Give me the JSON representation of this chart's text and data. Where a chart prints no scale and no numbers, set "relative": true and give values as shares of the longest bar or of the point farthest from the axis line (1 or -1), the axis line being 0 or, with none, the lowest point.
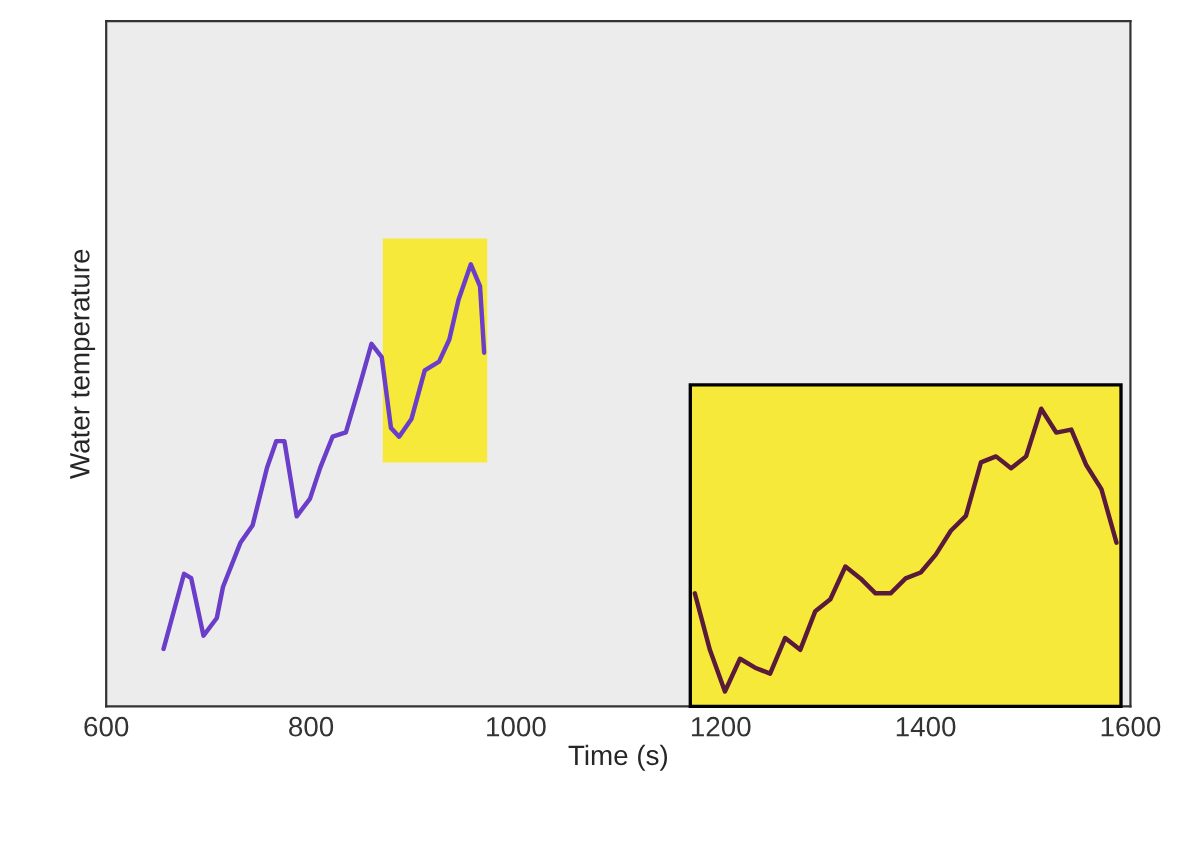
{
  "chart_data": [
    {
      "type": "line",
      "relative": true,
      "xlabel": "Time (s)",
      "ylabel": "Water temperature",
      "xlim": [
        600,
        1600
      ],
      "xticks": [
        600,
        800,
        1000,
        1200,
        1400,
        1600
      ],
      "tick_labels": "x",
      "grid": false,
      "x": [
        656,
        676,
        683,
        695,
        708,
        714,
        731,
        743,
        757,
        766,
        774,
        786,
        799,
        809,
        821,
        834,
        848,
        859,
        869,
        878,
        886,
        898,
        911,
        925,
        935,
        944,
        956,
        965,
        969
      ],
      "series": [
        {
          "color": "#6a3ec8",
          "values": [
            0.13,
            0.3,
            0.29,
            0.16,
            0.2,
            0.27,
            0.37,
            0.41,
            0.54,
            0.6,
            0.6,
            0.43,
            0.47,
            0.54,
            0.61,
            0.62,
            0.73,
            0.82,
            0.79,
            0.63,
            0.61,
            0.65,
            0.76,
            0.78,
            0.83,
            0.92,
            1.0,
            0.95,
            0.8
          ]
        }
      ],
      "bands": [
        {
          "axis": "x",
          "from": 870,
          "to": 972,
          "color": "#f7e93a"
        }
      ]
    },
    {
      "type": "line",
      "relative": true,
      "tick_labels": false,
      "grid": false,
      "categories": [
        null,
        null,
        null,
        null,
        null,
        null,
        null,
        null,
        null,
        null,
        null,
        null,
        null,
        null,
        null,
        null,
        null,
        null,
        null,
        null,
        null,
        null,
        null,
        null,
        null,
        null,
        null,
        null,
        null
      ],
      "series": [
        {
          "color": "#5a1a3a",
          "values": [
            0.38,
            0.19,
            0.05,
            0.16,
            0.13,
            0.11,
            0.23,
            0.19,
            0.32,
            0.36,
            0.47,
            0.43,
            0.38,
            0.38,
            0.43,
            0.45,
            0.51,
            0.59,
            0.64,
            0.82,
            0.84,
            0.8,
            0.84,
            1.0,
            0.92,
            0.93,
            0.81,
            0.73,
            0.55
          ]
        }
      ]
    }
  ]
}
